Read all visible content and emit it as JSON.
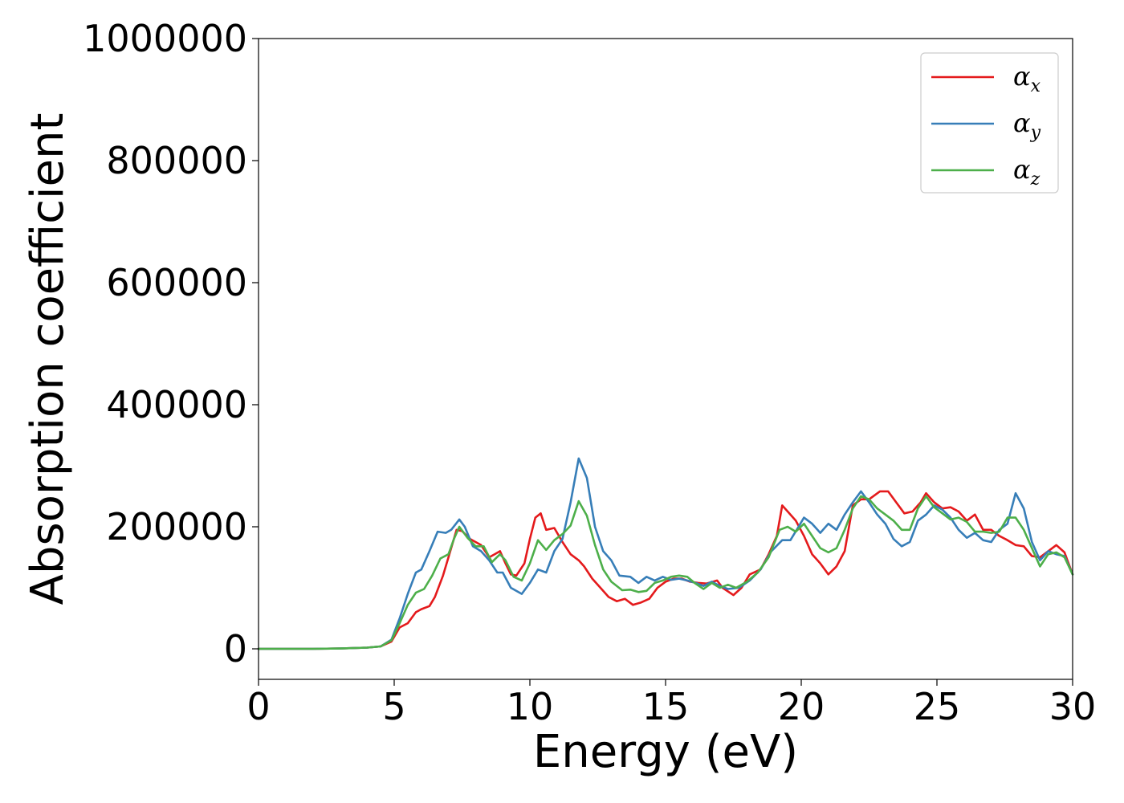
{
  "chart_data": {
    "type": "line",
    "title": "",
    "xlabel": "Energy (eV)",
    "ylabel": "Absorption coefficient",
    "xlim": [
      0,
      30
    ],
    "ylim": [
      -50000,
      1000000
    ],
    "xticks": [
      0,
      5,
      10,
      15,
      20,
      25,
      30
    ],
    "xtick_labels": [
      "0",
      "5",
      "10",
      "15",
      "20",
      "25",
      "30"
    ],
    "yticks": [
      0,
      200000,
      400000,
      600000,
      800000,
      1000000
    ],
    "ytick_labels": [
      "0",
      "200000",
      "400000",
      "600000",
      "800000",
      "1000000"
    ],
    "grid": false,
    "legend_position": "top-right",
    "series": [
      {
        "name": "αx",
        "label_base": "α",
        "label_sub": "x",
        "color": "#e41a1c",
        "points": [
          [
            0,
            0
          ],
          [
            1,
            0
          ],
          [
            2,
            0
          ],
          [
            3,
            500
          ],
          [
            4,
            2000
          ],
          [
            4.5,
            4000
          ],
          [
            4.9,
            12000
          ],
          [
            5.2,
            35000
          ],
          [
            5.5,
            42000
          ],
          [
            5.8,
            60000
          ],
          [
            6.0,
            65000
          ],
          [
            6.3,
            70000
          ],
          [
            6.5,
            85000
          ],
          [
            6.8,
            120000
          ],
          [
            7.0,
            150000
          ],
          [
            7.3,
            195000
          ],
          [
            7.5,
            193000
          ],
          [
            7.8,
            180000
          ],
          [
            8.0,
            175000
          ],
          [
            8.2,
            170000
          ],
          [
            8.5,
            150000
          ],
          [
            8.7,
            155000
          ],
          [
            8.9,
            160000
          ],
          [
            9.1,
            140000
          ],
          [
            9.3,
            122000
          ],
          [
            9.5,
            120000
          ],
          [
            9.8,
            140000
          ],
          [
            10.0,
            180000
          ],
          [
            10.2,
            215000
          ],
          [
            10.4,
            222000
          ],
          [
            10.6,
            195000
          ],
          [
            10.9,
            198000
          ],
          [
            11.2,
            175000
          ],
          [
            11.5,
            155000
          ],
          [
            11.8,
            145000
          ],
          [
            12.0,
            135000
          ],
          [
            12.3,
            115000
          ],
          [
            12.6,
            100000
          ],
          [
            12.9,
            85000
          ],
          [
            13.2,
            78000
          ],
          [
            13.5,
            82000
          ],
          [
            13.8,
            72000
          ],
          [
            14.1,
            76000
          ],
          [
            14.4,
            82000
          ],
          [
            14.7,
            100000
          ],
          [
            15.0,
            110000
          ],
          [
            15.3,
            115000
          ],
          [
            15.6,
            115000
          ],
          [
            15.9,
            110000
          ],
          [
            16.2,
            108000
          ],
          [
            16.5,
            107000
          ],
          [
            16.9,
            112000
          ],
          [
            17.1,
            100000
          ],
          [
            17.5,
            88000
          ],
          [
            17.8,
            100000
          ],
          [
            18.1,
            122000
          ],
          [
            18.5,
            130000
          ],
          [
            18.8,
            155000
          ],
          [
            19.1,
            185000
          ],
          [
            19.3,
            235000
          ],
          [
            19.5,
            225000
          ],
          [
            19.8,
            210000
          ],
          [
            20.1,
            185000
          ],
          [
            20.4,
            155000
          ],
          [
            20.7,
            140000
          ],
          [
            21.0,
            122000
          ],
          [
            21.3,
            135000
          ],
          [
            21.6,
            160000
          ],
          [
            21.9,
            235000
          ],
          [
            22.2,
            245000
          ],
          [
            22.5,
            245000
          ],
          [
            22.9,
            258000
          ],
          [
            23.2,
            258000
          ],
          [
            23.5,
            240000
          ],
          [
            23.8,
            222000
          ],
          [
            24.1,
            225000
          ],
          [
            24.4,
            240000
          ],
          [
            24.6,
            255000
          ],
          [
            24.9,
            240000
          ],
          [
            25.2,
            230000
          ],
          [
            25.5,
            232000
          ],
          [
            25.8,
            225000
          ],
          [
            26.1,
            210000
          ],
          [
            26.4,
            220000
          ],
          [
            26.7,
            195000
          ],
          [
            27.0,
            195000
          ],
          [
            27.3,
            185000
          ],
          [
            27.6,
            178000
          ],
          [
            27.9,
            170000
          ],
          [
            28.2,
            168000
          ],
          [
            28.5,
            152000
          ],
          [
            28.8,
            150000
          ],
          [
            29.1,
            160000
          ],
          [
            29.4,
            170000
          ],
          [
            29.7,
            158000
          ],
          [
            30,
            122000
          ]
        ]
      },
      {
        "name": "αy",
        "label_base": "α",
        "label_sub": "y",
        "color": "#377eb8",
        "points": [
          [
            0,
            0
          ],
          [
            1,
            0
          ],
          [
            2,
            0
          ],
          [
            3,
            500
          ],
          [
            4,
            2000
          ],
          [
            4.5,
            4000
          ],
          [
            4.9,
            15000
          ],
          [
            5.2,
            50000
          ],
          [
            5.5,
            90000
          ],
          [
            5.8,
            125000
          ],
          [
            6.0,
            130000
          ],
          [
            6.3,
            160000
          ],
          [
            6.6,
            192000
          ],
          [
            6.9,
            190000
          ],
          [
            7.1,
            195000
          ],
          [
            7.4,
            212000
          ],
          [
            7.6,
            200000
          ],
          [
            7.9,
            168000
          ],
          [
            8.2,
            160000
          ],
          [
            8.5,
            145000
          ],
          [
            8.8,
            125000
          ],
          [
            9.0,
            125000
          ],
          [
            9.3,
            100000
          ],
          [
            9.7,
            90000
          ],
          [
            10.0,
            108000
          ],
          [
            10.3,
            130000
          ],
          [
            10.6,
            125000
          ],
          [
            10.9,
            160000
          ],
          [
            11.2,
            180000
          ],
          [
            11.5,
            240000
          ],
          [
            11.8,
            312000
          ],
          [
            12.1,
            280000
          ],
          [
            12.4,
            200000
          ],
          [
            12.7,
            160000
          ],
          [
            13.0,
            145000
          ],
          [
            13.3,
            120000
          ],
          [
            13.7,
            118000
          ],
          [
            14.0,
            108000
          ],
          [
            14.3,
            118000
          ],
          [
            14.6,
            112000
          ],
          [
            14.9,
            118000
          ],
          [
            15.2,
            113000
          ],
          [
            15.5,
            115000
          ],
          [
            15.8,
            112000
          ],
          [
            16.1,
            108000
          ],
          [
            16.4,
            103000
          ],
          [
            16.7,
            110000
          ],
          [
            17.0,
            103000
          ],
          [
            17.3,
            98000
          ],
          [
            17.7,
            100000
          ],
          [
            18.1,
            112000
          ],
          [
            18.5,
            130000
          ],
          [
            18.9,
            160000
          ],
          [
            19.3,
            178000
          ],
          [
            19.6,
            178000
          ],
          [
            19.9,
            200000
          ],
          [
            20.1,
            215000
          ],
          [
            20.4,
            205000
          ],
          [
            20.7,
            190000
          ],
          [
            21.0,
            205000
          ],
          [
            21.3,
            195000
          ],
          [
            21.6,
            220000
          ],
          [
            21.9,
            240000
          ],
          [
            22.2,
            258000
          ],
          [
            22.5,
            240000
          ],
          [
            22.8,
            220000
          ],
          [
            23.1,
            205000
          ],
          [
            23.4,
            180000
          ],
          [
            23.7,
            168000
          ],
          [
            24.0,
            175000
          ],
          [
            24.3,
            210000
          ],
          [
            24.6,
            220000
          ],
          [
            24.9,
            235000
          ],
          [
            25.2,
            228000
          ],
          [
            25.5,
            215000
          ],
          [
            25.8,
            195000
          ],
          [
            26.1,
            182000
          ],
          [
            26.4,
            190000
          ],
          [
            26.7,
            178000
          ],
          [
            27.0,
            175000
          ],
          [
            27.3,
            195000
          ],
          [
            27.6,
            205000
          ],
          [
            27.9,
            255000
          ],
          [
            28.2,
            230000
          ],
          [
            28.5,
            175000
          ],
          [
            28.8,
            145000
          ],
          [
            29.1,
            160000
          ],
          [
            29.4,
            155000
          ],
          [
            29.7,
            152000
          ],
          [
            30,
            122000
          ]
        ]
      },
      {
        "name": "αz",
        "label_base": "α",
        "label_sub": "z",
        "color": "#4daf4a",
        "points": [
          [
            0,
            0
          ],
          [
            1,
            0
          ],
          [
            2,
            0
          ],
          [
            3,
            500
          ],
          [
            4,
            2000
          ],
          [
            4.5,
            4000
          ],
          [
            4.9,
            14000
          ],
          [
            5.2,
            42000
          ],
          [
            5.5,
            72000
          ],
          [
            5.8,
            92000
          ],
          [
            6.1,
            98000
          ],
          [
            6.4,
            120000
          ],
          [
            6.7,
            148000
          ],
          [
            7.0,
            155000
          ],
          [
            7.2,
            180000
          ],
          [
            7.4,
            200000
          ],
          [
            7.7,
            182000
          ],
          [
            8.0,
            168000
          ],
          [
            8.3,
            168000
          ],
          [
            8.6,
            142000
          ],
          [
            8.9,
            155000
          ],
          [
            9.1,
            145000
          ],
          [
            9.4,
            118000
          ],
          [
            9.7,
            112000
          ],
          [
            10.0,
            140000
          ],
          [
            10.3,
            178000
          ],
          [
            10.6,
            162000
          ],
          [
            10.9,
            178000
          ],
          [
            11.2,
            188000
          ],
          [
            11.5,
            202000
          ],
          [
            11.8,
            242000
          ],
          [
            12.1,
            218000
          ],
          [
            12.4,
            170000
          ],
          [
            12.7,
            130000
          ],
          [
            13.0,
            110000
          ],
          [
            13.4,
            96000
          ],
          [
            13.7,
            97000
          ],
          [
            14.0,
            93000
          ],
          [
            14.3,
            95000
          ],
          [
            14.6,
            108000
          ],
          [
            14.9,
            112000
          ],
          [
            15.2,
            118000
          ],
          [
            15.5,
            120000
          ],
          [
            15.8,
            118000
          ],
          [
            16.1,
            107000
          ],
          [
            16.4,
            98000
          ],
          [
            16.7,
            108000
          ],
          [
            17.0,
            100000
          ],
          [
            17.3,
            105000
          ],
          [
            17.6,
            100000
          ],
          [
            18.0,
            110000
          ],
          [
            18.4,
            125000
          ],
          [
            18.8,
            150000
          ],
          [
            19.2,
            195000
          ],
          [
            19.5,
            200000
          ],
          [
            19.8,
            192000
          ],
          [
            20.1,
            205000
          ],
          [
            20.4,
            185000
          ],
          [
            20.7,
            165000
          ],
          [
            21.0,
            158000
          ],
          [
            21.3,
            165000
          ],
          [
            21.6,
            195000
          ],
          [
            21.9,
            230000
          ],
          [
            22.2,
            250000
          ],
          [
            22.5,
            245000
          ],
          [
            22.8,
            230000
          ],
          [
            23.1,
            220000
          ],
          [
            23.4,
            210000
          ],
          [
            23.7,
            195000
          ],
          [
            24.0,
            195000
          ],
          [
            24.3,
            230000
          ],
          [
            24.6,
            250000
          ],
          [
            24.9,
            232000
          ],
          [
            25.2,
            222000
          ],
          [
            25.5,
            212000
          ],
          [
            25.8,
            215000
          ],
          [
            26.1,
            208000
          ],
          [
            26.4,
            192000
          ],
          [
            26.7,
            192000
          ],
          [
            27.0,
            190000
          ],
          [
            27.3,
            192000
          ],
          [
            27.6,
            215000
          ],
          [
            27.9,
            215000
          ],
          [
            28.2,
            195000
          ],
          [
            28.5,
            165000
          ],
          [
            28.8,
            135000
          ],
          [
            29.1,
            155000
          ],
          [
            29.4,
            158000
          ],
          [
            29.7,
            150000
          ],
          [
            30,
            122000
          ]
        ]
      }
    ]
  }
}
